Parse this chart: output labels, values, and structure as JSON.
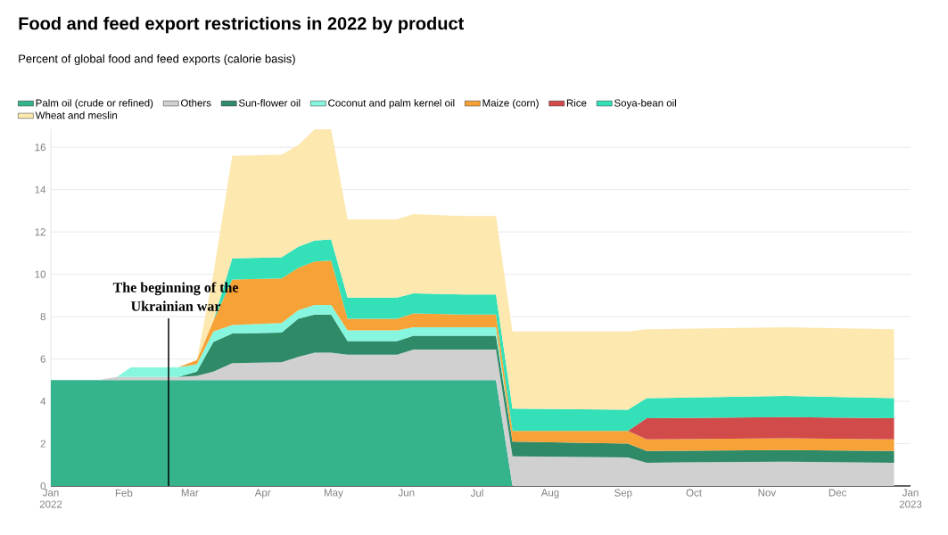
{
  "chart_data": {
    "type": "area",
    "title": "Food and feed export restrictions in 2022 by product",
    "subtitle": "Percent of global food and feed exports (calorie basis)",
    "stacked": true,
    "grid": "y",
    "legend": "top",
    "x": [
      "2022-01-01",
      "2022-01-21",
      "2022-01-29",
      "2022-02-04",
      "2022-02-24",
      "2022-03-04",
      "2022-03-11",
      "2022-03-19",
      "2022-04-09",
      "2022-04-16",
      "2022-04-23",
      "2022-04-30",
      "2022-05-07",
      "2022-05-28",
      "2022-06-04",
      "2022-06-25",
      "2022-07-09",
      "2022-07-16",
      "2022-09-03",
      "2022-09-11",
      "2022-11-09",
      "2022-12-25"
    ],
    "series": [
      {
        "name": "Palm oil (crude or refined)",
        "color": "#34b38c",
        "values": [
          5,
          5,
          5,
          5,
          5,
          5,
          5,
          5,
          5,
          5,
          5,
          5,
          5,
          5,
          5,
          5,
          5,
          0,
          0,
          0,
          0,
          0
        ]
      },
      {
        "name": "Others",
        "color": "#d0d0d0",
        "values": [
          0,
          0,
          0.15,
          0.15,
          0.15,
          0.2,
          0.4,
          0.8,
          0.85,
          1.1,
          1.3,
          1.3,
          1.2,
          1.2,
          1.45,
          1.45,
          1.45,
          1.4,
          1.35,
          1.1,
          1.15,
          1.1
        ]
      },
      {
        "name": "Sun-flower oil",
        "color": "#2f8a68",
        "values": [
          0,
          0,
          0,
          0,
          0,
          0.2,
          1.4,
          1.4,
          1.4,
          1.8,
          1.8,
          1.8,
          0.65,
          0.65,
          0.65,
          0.65,
          0.65,
          0.7,
          0.65,
          0.55,
          0.55,
          0.55
        ]
      },
      {
        "name": "Coconut and palm kernel oil",
        "color": "#86f7de",
        "values": [
          0,
          0,
          0,
          0.45,
          0.45,
          0.35,
          0.5,
          0.4,
          0.45,
          0.4,
          0.45,
          0.45,
          0.5,
          0.5,
          0.4,
          0.4,
          0.4,
          0,
          0,
          0,
          0,
          0
        ]
      },
      {
        "name": "Maize (corn)",
        "color": "#f7a236",
        "values": [
          0,
          0,
          0,
          0,
          0,
          0.2,
          0.5,
          2.15,
          2.1,
          2.0,
          2.05,
          2.1,
          0.55,
          0.55,
          0.65,
          0.6,
          0.6,
          0.5,
          0.6,
          0.55,
          0.55,
          0.55
        ]
      },
      {
        "name": "Rice",
        "color": "#d24b4b",
        "values": [
          0,
          0,
          0,
          0,
          0,
          0,
          0,
          0,
          0,
          0,
          0,
          0,
          0,
          0,
          0,
          0,
          0,
          0,
          0,
          1.0,
          1.0,
          1.0
        ]
      },
      {
        "name": "Soya-bean oil",
        "color": "#33e0b8",
        "values": [
          0,
          0,
          0,
          0,
          0,
          0,
          0,
          1.0,
          1.0,
          1.0,
          1.0,
          1.0,
          1.0,
          1.0,
          0.95,
          0.95,
          0.95,
          1.05,
          1.0,
          0.95,
          1.0,
          0.95
        ]
      },
      {
        "name": "Wheat and meslin",
        "color": "#fde8b0",
        "values": [
          0,
          0,
          0,
          0,
          0,
          0,
          2.2,
          4.85,
          4.85,
          4.8,
          5.25,
          5.2,
          3.7,
          3.7,
          3.75,
          3.7,
          3.7,
          3.65,
          3.7,
          3.25,
          3.25,
          3.25
        ]
      }
    ],
    "xlim": [
      "2022-01-01",
      "2023-01-01"
    ],
    "xticks": [
      {
        "value": "2022-01-01",
        "label": "Jan 2022"
      },
      {
        "value": "2022-02-01",
        "label": "Feb"
      },
      {
        "value": "2022-03-01",
        "label": "Mar"
      },
      {
        "value": "2022-04-01",
        "label": "Apr"
      },
      {
        "value": "2022-05-01",
        "label": "May"
      },
      {
        "value": "2022-06-01",
        "label": "Jun"
      },
      {
        "value": "2022-07-01",
        "label": "Jul"
      },
      {
        "value": "2022-08-01",
        "label": "Aug"
      },
      {
        "value": "2022-09-01",
        "label": "Sep"
      },
      {
        "value": "2022-10-01",
        "label": "Oct"
      },
      {
        "value": "2022-11-01",
        "label": "Nov"
      },
      {
        "value": "2022-12-01",
        "label": "Dec"
      },
      {
        "value": "2023-01-01",
        "label": "Jan 2023"
      }
    ],
    "ylim": [
      0,
      16.85
    ],
    "yticks": [
      0,
      2,
      4,
      6,
      8,
      10,
      12,
      14,
      16
    ],
    "ref_lines": [
      {
        "axis": "x",
        "value": "2022-02-20",
        "label": "The beginning of the Ukrainian war"
      }
    ]
  }
}
